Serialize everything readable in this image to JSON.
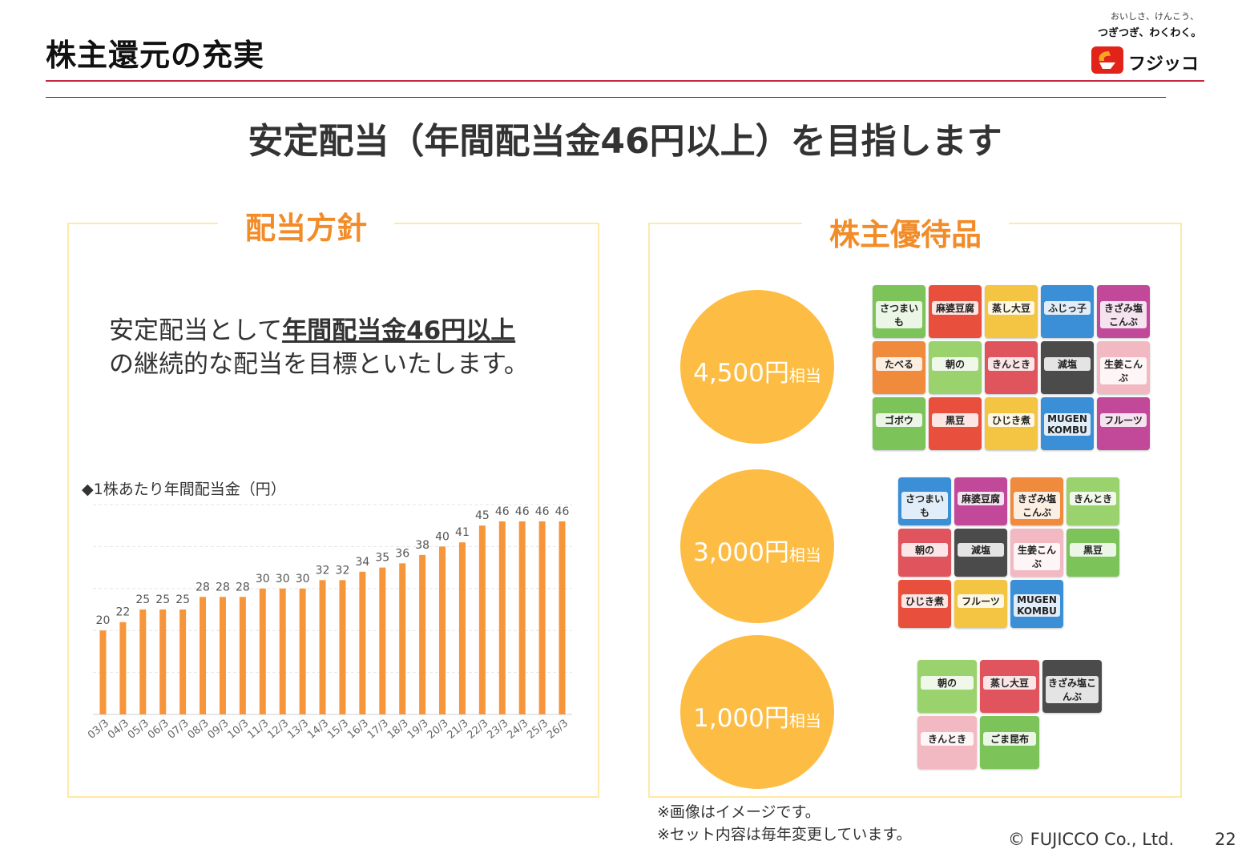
{
  "header": {
    "title": "株主還元の充実",
    "logo_tagline_1": "おいしさ、けんこう、",
    "logo_tagline_2": "つぎつぎ、わくわく。",
    "logo_name": "フジッコ"
  },
  "headline": "安定配当（年間配当金46円以上）を目指します",
  "policy": {
    "title": "配当方針",
    "text_pre": "安定配当として",
    "text_em": "年間配当金46円以上",
    "text_post": "の継続的な配当を目標といたします。",
    "chart_label": "◆1株あたり年間配当金（円）"
  },
  "chart_data": {
    "type": "bar",
    "categories": [
      "03/3",
      "04/3",
      "05/3",
      "06/3",
      "07/3",
      "08/3",
      "09/3",
      "10/3",
      "11/3",
      "12/3",
      "13/3",
      "14/3",
      "15/3",
      "16/3",
      "17/3",
      "18/3",
      "19/3",
      "20/3",
      "21/3",
      "22/3",
      "23/3",
      "24/3",
      "25/3",
      "26/3"
    ],
    "values": [
      20,
      22,
      25,
      25,
      25,
      28,
      28,
      28,
      30,
      30,
      30,
      32,
      32,
      34,
      35,
      36,
      38,
      40,
      41,
      45,
      46,
      46,
      46,
      46
    ],
    "ylim": [
      0,
      50
    ],
    "grid": true,
    "bar_color": "#f7953a"
  },
  "benefits": {
    "title": "株主優待品",
    "tiers": [
      {
        "amount": "4,500円",
        "suffix": "相当"
      },
      {
        "amount": "3,000円",
        "suffix": "相当"
      },
      {
        "amount": "1,000円",
        "suffix": "相当"
      }
    ],
    "tier_products": [
      [
        "さつまいも",
        "麻婆豆腐",
        "蒸し大豆",
        "ふじっ子",
        "きざみ塩こんぶ",
        "たべる",
        "朝の",
        "きんとき",
        "減塩",
        "生姜こんぶ",
        "ゴボウ",
        "黒豆",
        "ひじき煮",
        "MUGEN KOMBU",
        "フルーツ"
      ],
      [
        "さつまいも",
        "麻婆豆腐",
        "きざみ塩こんぶ",
        "きんとき",
        "朝の",
        "減塩",
        "生姜こんぶ",
        "黒豆",
        "ひじき煮",
        "フルーツ",
        "MUGEN KOMBU"
      ],
      [
        "朝の",
        "蒸し大豆",
        "きざみ塩こんぶ",
        "きんとき",
        "ごま昆布"
      ]
    ]
  },
  "notes": [
    "※画像はイメージです。",
    "※セット内容は毎年変更しています。"
  ],
  "footer": {
    "copyright": "© FUJICCO Co., Ltd.",
    "page": "22"
  },
  "colors": {
    "accent_orange": "#f28c28",
    "circle_yellow": "#fdbd44",
    "rule_red": "#c8283c",
    "panel_border": "#fde9a8"
  }
}
